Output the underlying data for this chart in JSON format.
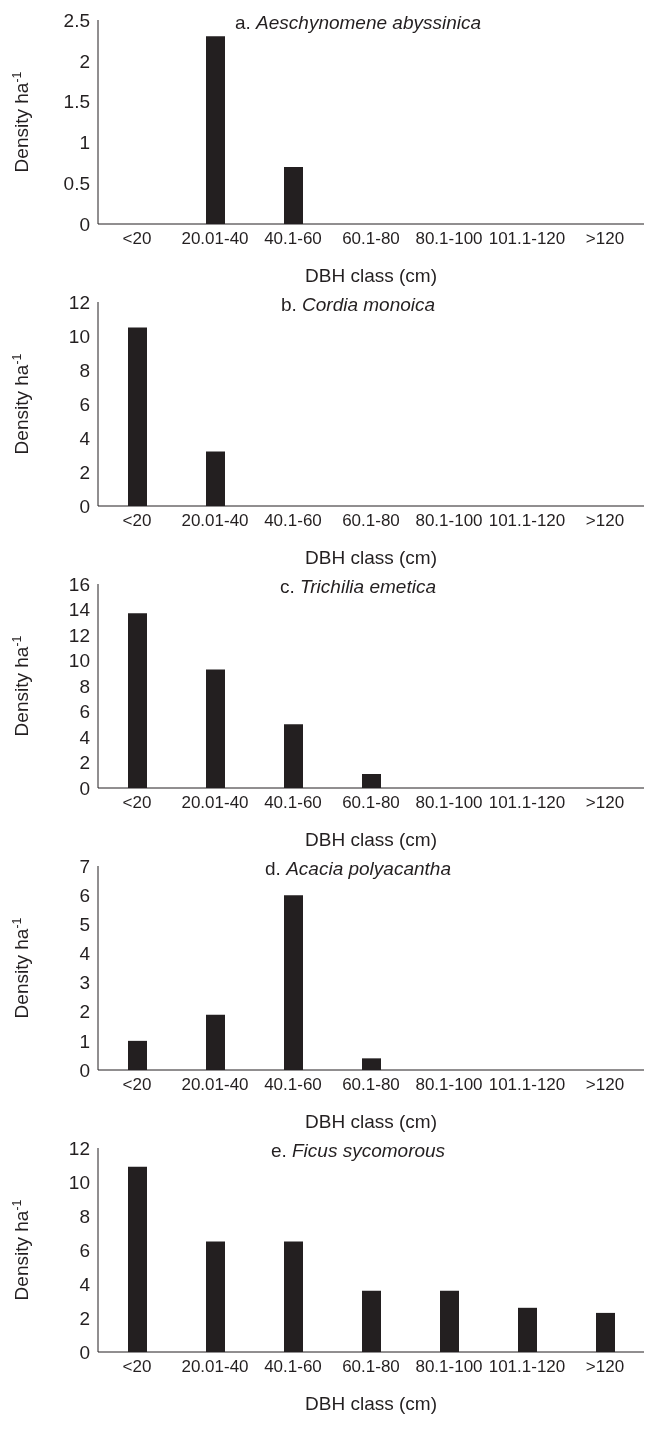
{
  "chart_data": [
    {
      "type": "bar",
      "title": "a. Aeschynomene abyssinica",
      "xlabel": "DBH class (cm)",
      "ylabel": "Density ha$^{-1}$",
      "categories": [
        "<20",
        "20.01-40",
        "40.1-60",
        "60.1-80",
        "80.1-100",
        "101.1-120",
        ">120"
      ],
      "values": [
        0,
        2.3,
        0.7,
        0,
        0,
        0,
        0
      ],
      "color": "#231f20",
      "ylim": [
        0,
        2.5
      ],
      "yticks": [
        0,
        0.5,
        1,
        1.5,
        2,
        2.5
      ],
      "grid": false,
      "legend": false
    },
    {
      "type": "bar",
      "title": "b. Cordia monoica",
      "xlabel": "DBH class (cm)",
      "ylabel": "Density ha$^{-1}$",
      "categories": [
        "<20",
        "20.01-40",
        "40.1-60",
        "60.1-80",
        "80.1-100",
        "101.1-120",
        ">120"
      ],
      "values": [
        10.5,
        3.2,
        0,
        0,
        0,
        0,
        0
      ],
      "color": "#231f20",
      "ylim": [
        0,
        12
      ],
      "yticks": [
        0,
        2,
        4,
        6,
        8,
        10,
        12
      ],
      "grid": false,
      "legend": false
    },
    {
      "type": "bar",
      "title": "c. Trichilia emetica",
      "xlabel": "DBH class (cm)",
      "ylabel": "Density ha$^{-1}$",
      "categories": [
        "<20",
        "20.01-40",
        "40.1-60",
        "60.1-80",
        "80.1-100",
        "101.1-120",
        ">120"
      ],
      "values": [
        13.7,
        9.3,
        5.0,
        1.1,
        0,
        0,
        0
      ],
      "color": "#231f20",
      "ylim": [
        0,
        16
      ],
      "yticks": [
        0,
        2,
        4,
        6,
        8,
        10,
        12,
        14,
        16
      ],
      "grid": false,
      "legend": false
    },
    {
      "type": "bar",
      "title": "d. Acacia polyacantha",
      "xlabel": "DBH class (cm)",
      "ylabel": "Density ha$^{-1}$",
      "categories": [
        "<20",
        "20.01-40",
        "40.1-60",
        "60.1-80",
        "80.1-100",
        "101.1-120",
        ">120"
      ],
      "values": [
        1.0,
        1.9,
        6.0,
        0.4,
        0,
        0,
        0
      ],
      "color": "#231f20",
      "ylim": [
        0,
        7
      ],
      "yticks": [
        0,
        1,
        2,
        3,
        4,
        5,
        6,
        7
      ],
      "grid": false,
      "legend": false
    },
    {
      "type": "bar",
      "title": "e. Ficus sycomorous",
      "xlabel": "DBH class (cm)",
      "ylabel": "Density ha$^{-1}$",
      "categories": [
        "<20",
        "20.01-40",
        "40.1-60",
        "60.1-80",
        "80.1-100",
        "101.1-120",
        ">120"
      ],
      "values": [
        10.9,
        6.5,
        6.5,
        3.6,
        3.6,
        2.6,
        2.3
      ],
      "color": "#231f20",
      "ylim": [
        0,
        12
      ],
      "yticks": [
        0,
        2,
        4,
        6,
        8,
        10,
        12
      ],
      "grid": false,
      "legend": false
    }
  ]
}
